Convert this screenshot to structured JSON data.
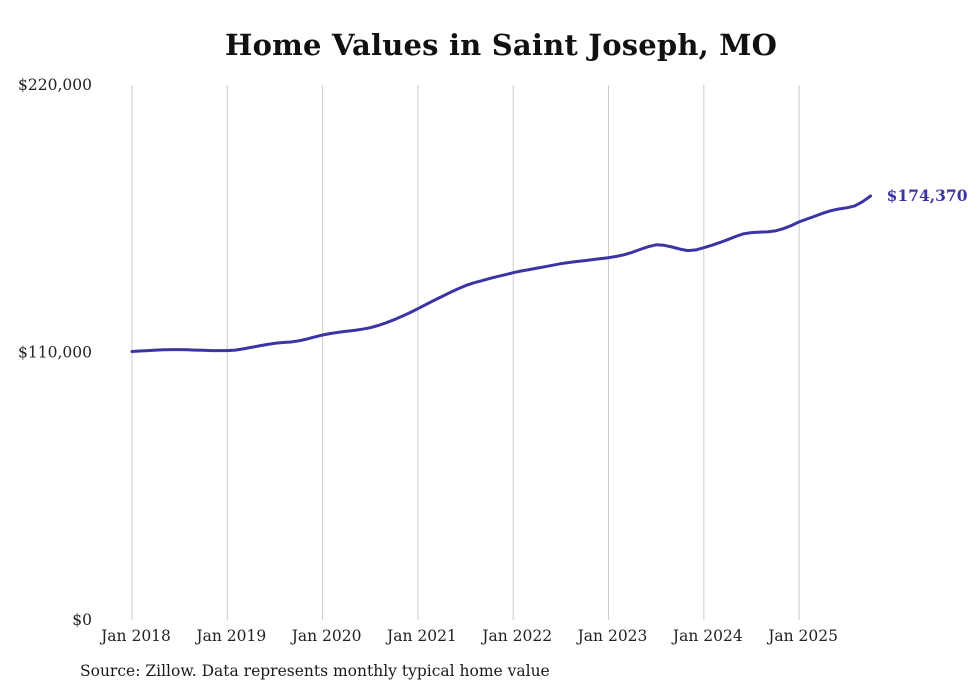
{
  "chart": {
    "source_note": "Source: Zillow. Data represents monthly typical home value",
    "colors": {
      "line": "#3c34a4",
      "grid": "#cccccc",
      "axis_text": "#222222",
      "title_text": "#111111"
    }
  },
  "chart_data": {
    "type": "line",
    "title": "Home Values in Saint Joseph, MO",
    "xlabel": "",
    "ylabel": "",
    "ylim": [
      0,
      220000
    ],
    "y_ticks": [
      220000,
      110000,
      0
    ],
    "y_tick_labels": [
      "$220,000",
      "$110,000",
      "$0"
    ],
    "x_tick_labels": [
      "Jan 2018",
      "Jan 2019",
      "Jan 2020",
      "Jan 2021",
      "Jan 2022",
      "Jan 2023",
      "Jan 2024",
      "Jan 2025"
    ],
    "grid": "vertical",
    "legend": "none",
    "annotation": "$174,370",
    "x": [
      "Jan 2018",
      "Feb 2018",
      "Mar 2018",
      "Apr 2018",
      "May 2018",
      "Jun 2018",
      "Jul 2018",
      "Aug 2018",
      "Sep 2018",
      "Oct 2018",
      "Nov 2018",
      "Dec 2018",
      "Jan 2019",
      "Feb 2019",
      "Mar 2019",
      "Apr 2019",
      "May 2019",
      "Jun 2019",
      "Jul 2019",
      "Aug 2019",
      "Sep 2019",
      "Oct 2019",
      "Nov 2019",
      "Dec 2019",
      "Jan 2020",
      "Feb 2020",
      "Mar 2020",
      "Apr 2020",
      "May 2020",
      "Jun 2020",
      "Jul 2020",
      "Aug 2020",
      "Sep 2020",
      "Oct 2020",
      "Nov 2020",
      "Dec 2020",
      "Jan 2021",
      "Feb 2021",
      "Mar 2021",
      "Apr 2021",
      "May 2021",
      "Jun 2021",
      "Jul 2021",
      "Aug 2021",
      "Sep 2021",
      "Oct 2021",
      "Nov 2021",
      "Dec 2021",
      "Jan 2022",
      "Feb 2022",
      "Mar 2022",
      "Apr 2022",
      "May 2022",
      "Jun 2022",
      "Jul 2022",
      "Aug 2022",
      "Sep 2022",
      "Oct 2022",
      "Nov 2022",
      "Dec 2022",
      "Jan 2023",
      "Feb 2023",
      "Mar 2023",
      "Apr 2023",
      "May 2023",
      "Jun 2023",
      "Jul 2023",
      "Aug 2023",
      "Sep 2023",
      "Oct 2023",
      "Nov 2023",
      "Dec 2023",
      "Jan 2024",
      "Feb 2024",
      "Mar 2024",
      "Apr 2024",
      "May 2024",
      "Jun 2024",
      "Jul 2024",
      "Aug 2024",
      "Sep 2024",
      "Oct 2024",
      "Nov 2024",
      "Dec 2024",
      "Jan 2025",
      "Feb 2025",
      "Mar 2025",
      "Apr 2025",
      "May 2025",
      "Jun 2025",
      "Jul 2025",
      "Aug 2025",
      "Sep 2025",
      "Oct 2025"
    ],
    "series": [
      {
        "name": "Typical home value",
        "values": [
          110400,
          110600,
          110800,
          111000,
          111100,
          111200,
          111200,
          111100,
          111000,
          110900,
          110800,
          110800,
          110800,
          111000,
          111500,
          112100,
          112700,
          113300,
          113800,
          114100,
          114300,
          114800,
          115500,
          116400,
          117200,
          117800,
          118300,
          118700,
          119100,
          119600,
          120200,
          121100,
          122200,
          123500,
          124900,
          126400,
          128000,
          129700,
          131400,
          133000,
          134600,
          136100,
          137500,
          138600,
          139500,
          140400,
          141200,
          142000,
          142800,
          143500,
          144100,
          144700,
          145300,
          145900,
          146500,
          147000,
          147400,
          147800,
          148200,
          148600,
          149000,
          149500,
          150200,
          151200,
          152400,
          153500,
          154300,
          154100,
          153400,
          152500,
          151900,
          152200,
          153100,
          154100,
          155200,
          156400,
          157700,
          158800,
          159300,
          159500,
          159600,
          160000,
          160900,
          162200,
          163700,
          164900,
          166100,
          167300,
          168300,
          169000,
          169500,
          170300,
          172000,
          174370
        ]
      }
    ]
  }
}
